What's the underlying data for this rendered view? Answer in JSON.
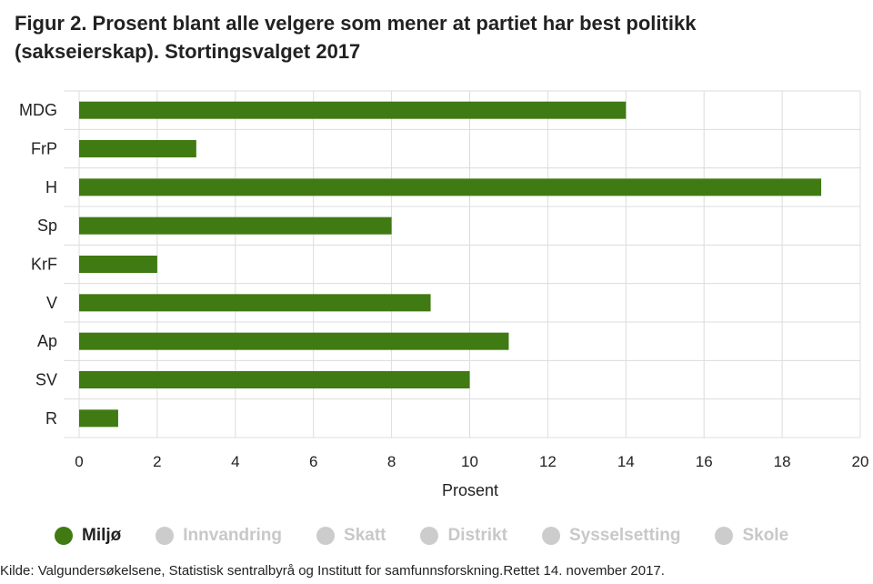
{
  "title": "Figur 2. Prosent blant alle velgere som mener at partiet har best politikk (sakseierskap). Stortingsvalget 2017",
  "source": "Kilde: Valgundersøkelsene, Statistisk sentralbyrå og Institutt for samfunnsforskning.Rettet 14. november 2017.",
  "colors": {
    "bar": "#3f7a12",
    "grid": "#dcdcdc",
    "inactive": "#cccccc",
    "active_text": "#222222",
    "inactive_text": "#c8c8c8"
  },
  "legend": [
    {
      "label": "Miljø",
      "active": true
    },
    {
      "label": "Innvandring",
      "active": false
    },
    {
      "label": "Skatt",
      "active": false
    },
    {
      "label": "Distrikt",
      "active": false
    },
    {
      "label": "Sysselsetting",
      "active": false
    },
    {
      "label": "Skole",
      "active": false
    }
  ],
  "chart_data": {
    "type": "bar",
    "orientation": "horizontal",
    "categories": [
      "MDG",
      "FrP",
      "H",
      "Sp",
      "KrF",
      "V",
      "Ap",
      "SV",
      "R"
    ],
    "series": [
      {
        "name": "Miljø",
        "values": [
          14,
          3,
          19,
          8,
          2,
          9,
          11,
          10,
          1
        ]
      }
    ],
    "xlabel": "Prosent",
    "xlim": [
      0,
      20
    ],
    "xticks": [
      0,
      2,
      4,
      6,
      8,
      10,
      12,
      14,
      16,
      18,
      20
    ],
    "grid": true,
    "legend_position": "bottom"
  }
}
